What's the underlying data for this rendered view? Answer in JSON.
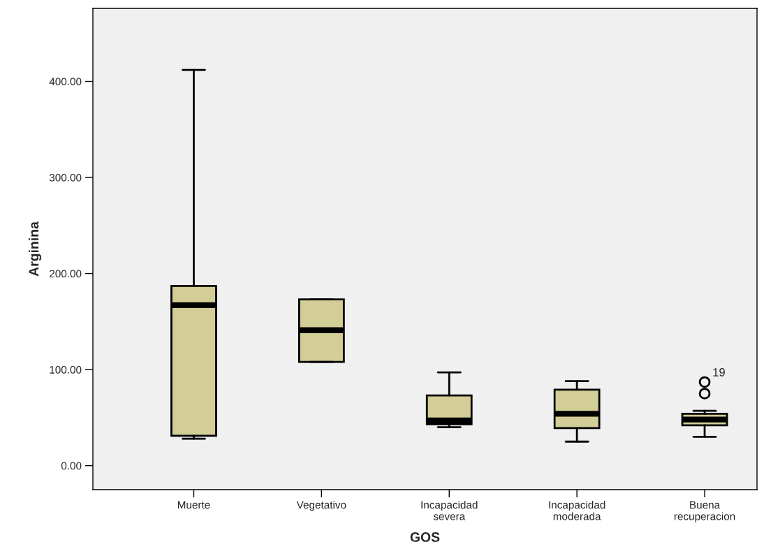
{
  "chart_data": {
    "type": "box",
    "xlabel": "GOS",
    "ylabel": "Arginina",
    "categories": [
      "Muerte",
      "Vegetativo",
      "Incapacidad\nsevera",
      "Incapacidad\nmoderada",
      "Buena\nrecuperacion"
    ],
    "color": "#d3cd97",
    "boxes": [
      {
        "low": 28,
        "q1": 31,
        "median": 167,
        "q3": 187,
        "high": 412
      },
      {
        "low": 108,
        "q1": 108,
        "median": 141,
        "q3": 173,
        "high": 173
      },
      {
        "low": 40,
        "q1": 43,
        "median": 47,
        "q3": 73,
        "high": 97
      },
      {
        "low": 25,
        "q1": 39,
        "median": 54,
        "q3": 79,
        "high": 88
      },
      {
        "low": 30,
        "q1": 42,
        "median": 48,
        "q3": 54,
        "high": 57,
        "outliers": [
          75,
          87
        ]
      }
    ],
    "annotations": [
      "19"
    ],
    "ylim": [
      -25,
      476
    ],
    "yticks": [
      {
        "value": 0,
        "label": "0.00"
      },
      {
        "value": 100,
        "label": "100.00"
      },
      {
        "value": 200,
        "label": "200.00"
      },
      {
        "value": 300,
        "label": "300.00"
      },
      {
        "value": 400,
        "label": "400.00"
      }
    ],
    "grid": false,
    "legend": false
  }
}
